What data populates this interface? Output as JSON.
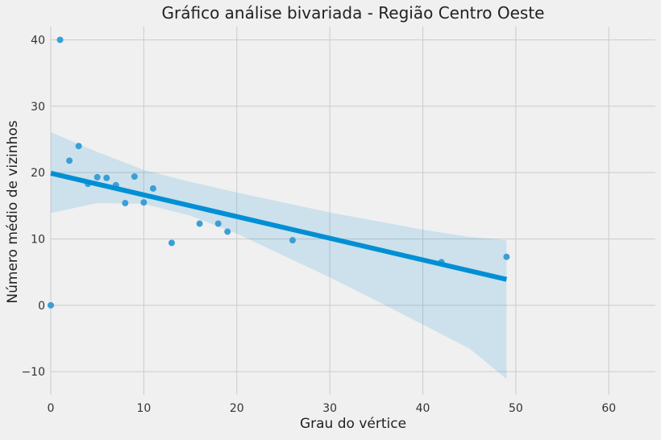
{
  "chart_data": {
    "type": "scatter",
    "title": "Gráfico análise bivariada - Região Centro Oeste",
    "xlabel": "Grau do vértice",
    "ylabel": "Número médio de vizinhos",
    "xlim": [
      0,
      65
    ],
    "ylim": [
      -13.5,
      42
    ],
    "xticks": [
      0,
      10,
      20,
      30,
      40,
      50,
      60
    ],
    "yticks": [
      -10,
      0,
      10,
      20,
      30,
      40
    ],
    "ytick_labels": [
      "−10",
      "0",
      "10",
      "20",
      "30",
      "40"
    ],
    "grid": true,
    "points": [
      {
        "x": 0,
        "y": 0
      },
      {
        "x": 1,
        "y": 40
      },
      {
        "x": 2,
        "y": 21.8
      },
      {
        "x": 3,
        "y": 24
      },
      {
        "x": 4,
        "y": 18.3
      },
      {
        "x": 5,
        "y": 19.3
      },
      {
        "x": 6,
        "y": 19.2
      },
      {
        "x": 7,
        "y": 18.1
      },
      {
        "x": 8,
        "y": 15.4
      },
      {
        "x": 9,
        "y": 19.4
      },
      {
        "x": 10,
        "y": 15.5
      },
      {
        "x": 11,
        "y": 17.6
      },
      {
        "x": 13,
        "y": 9.4
      },
      {
        "x": 16,
        "y": 12.3
      },
      {
        "x": 18,
        "y": 12.3
      },
      {
        "x": 19,
        "y": 11.1
      },
      {
        "x": 26,
        "y": 9.8
      },
      {
        "x": 42,
        "y": 6.5
      },
      {
        "x": 49,
        "y": 7.3
      }
    ],
    "regression": {
      "x": [
        0,
        49
      ],
      "y": [
        19.9,
        3.9
      ]
    },
    "confidence_band": {
      "x": [
        0,
        5,
        10,
        15,
        20,
        25,
        30,
        35,
        40,
        45,
        49
      ],
      "lower": [
        13.9,
        15.4,
        15.3,
        13.5,
        10.8,
        7.5,
        4.2,
        0.7,
        -2.9,
        -6.5,
        -11.1
      ],
      "upper": [
        26.1,
        23.1,
        20.4,
        18.6,
        17.0,
        15.5,
        14.0,
        12.7,
        11.4,
        10.3,
        9.8
      ]
    },
    "colors": {
      "points": "#3a9fd6",
      "line": "#008fd5",
      "band": "#008fd5",
      "grid": "#cbcbcb",
      "background": "#f0f0f0"
    }
  }
}
